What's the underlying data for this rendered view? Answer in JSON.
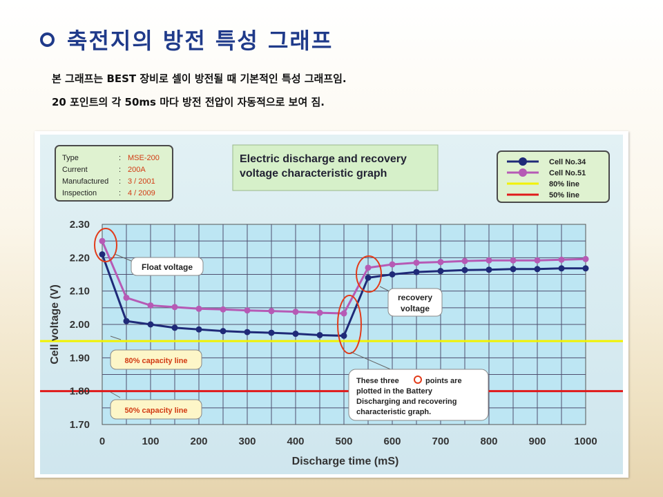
{
  "slide": {
    "title": "축전지의 방전 특성 그래프",
    "subtitle_1": "본 그래프는 BEST 장비로 셀이 방전될 때 기본적인 특성 그래프임.",
    "subtitle_2": "20 포인트의 각 50ms 마다 방전 전압이 자동적으로 보여 짐."
  },
  "info_box": {
    "rows": [
      {
        "label": "Type",
        "sep": ":",
        "value": "MSE-200"
      },
      {
        "label": "Current",
        "sep": ":",
        "value": "200A"
      },
      {
        "label": "Manufactured",
        "sep": ":",
        "value": "3 / 2001"
      },
      {
        "label": "Inspection",
        "sep": ":",
        "value": "4 / 2009"
      }
    ]
  },
  "chart_data": {
    "type": "line",
    "title_line1": "Electric discharge and recovery",
    "title_line2": "voltage characteristic graph",
    "xlabel": "Discharge time (mS)",
    "ylabel": "Cell voltage (V)",
    "xlim": [
      0,
      1000
    ],
    "ylim": [
      1.7,
      2.3
    ],
    "x_ticks": [
      0,
      100,
      200,
      300,
      400,
      500,
      600,
      700,
      800,
      900,
      1000
    ],
    "y_ticks": [
      "2.30",
      "2.20",
      "2.10",
      "2.00",
      "1.90",
      "1.80",
      "1.70"
    ],
    "grid": true,
    "legend_position": "top-right",
    "x": [
      0,
      50,
      100,
      150,
      200,
      250,
      300,
      350,
      400,
      450,
      500,
      550,
      600,
      650,
      700,
      750,
      800,
      850,
      900,
      950,
      1000
    ],
    "series": [
      {
        "name": "Cell No.34",
        "color": "#1f2a78",
        "values": [
          2.21,
          2.01,
          2.0,
          1.99,
          1.985,
          1.98,
          1.977,
          1.975,
          1.972,
          1.968,
          1.966,
          2.14,
          2.15,
          2.157,
          2.16,
          2.163,
          2.164,
          2.166,
          2.166,
          2.168,
          2.168
        ]
      },
      {
        "name": "Cell No.51",
        "color": "#b65ab5",
        "values": [
          2.25,
          2.08,
          2.057,
          2.052,
          2.047,
          2.045,
          2.042,
          2.04,
          2.038,
          2.035,
          2.033,
          2.17,
          2.18,
          2.185,
          2.187,
          2.19,
          2.192,
          2.192,
          2.192,
          2.194,
          2.196
        ]
      }
    ],
    "reference_lines": [
      {
        "name": "80% line",
        "value": 1.95,
        "color": "#f2f200"
      },
      {
        "name": "50% line",
        "value": 1.8,
        "color": "#e01a1a"
      }
    ],
    "annotations": {
      "float_voltage": "Float voltage",
      "recovery_line1": "recovery",
      "recovery_line2": "voltage",
      "capacity_80": "80% capacity line",
      "capacity_50": "50% capacity line",
      "note_line1": "These three",
      "note_line1b": "points are",
      "note_line2": "plotted in the Battery",
      "note_line3": "Discharging and recovering",
      "note_line4": "characteristic graph."
    }
  }
}
